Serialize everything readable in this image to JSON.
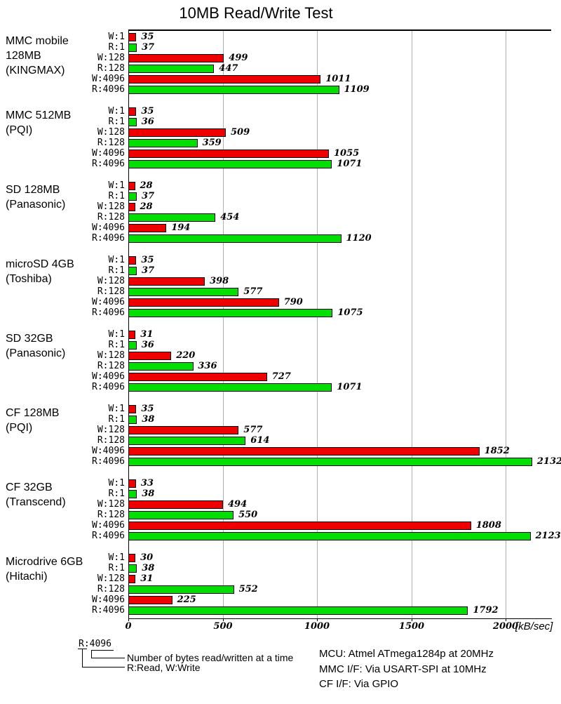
{
  "title": "10MB Read/Write Test",
  "colors": {
    "write": "#EE0000",
    "read": "#00DF00",
    "grid": "#B0B0B0",
    "axis": "#000000"
  },
  "chart_data": {
    "type": "bar",
    "orientation": "horizontal",
    "title": "10MB Read/Write Test",
    "xlabel": "[kB/sec]",
    "xticks": [
      0,
      500,
      1000,
      1500,
      2000
    ],
    "xmax": 2240,
    "grid": true,
    "bar_labels": [
      "W:1",
      "R:1",
      "W:128",
      "R:128",
      "W:4096",
      "R:4096"
    ],
    "series_legend": {
      "W": "Write (red)",
      "R": "Read (green)"
    },
    "groups": [
      {
        "name_lines": [
          "MMC mobile",
          "128MB",
          "(KINGMAX)"
        ],
        "values": [
          35,
          37,
          499,
          447,
          1011,
          1109
        ]
      },
      {
        "name_lines": [
          "MMC 512MB",
          "(PQI)"
        ],
        "values": [
          35,
          36,
          509,
          359,
          1055,
          1071
        ]
      },
      {
        "name_lines": [
          "SD 128MB",
          "(Panasonic)"
        ],
        "values": [
          28,
          37,
          28,
          454,
          194,
          1120
        ]
      },
      {
        "name_lines": [
          "microSD 4GB",
          "(Toshiba)"
        ],
        "values": [
          35,
          37,
          398,
          577,
          790,
          1075
        ]
      },
      {
        "name_lines": [
          "SD 32GB",
          "(Panasonic)"
        ],
        "values": [
          31,
          36,
          220,
          336,
          727,
          1071
        ]
      },
      {
        "name_lines": [
          "CF 128MB",
          "(PQI)"
        ],
        "values": [
          35,
          38,
          577,
          614,
          1852,
          2132
        ]
      },
      {
        "name_lines": [
          "CF 32GB",
          "(Transcend)"
        ],
        "values": [
          33,
          38,
          494,
          550,
          1808,
          2123
        ]
      },
      {
        "name_lines": [
          "Microdrive 6GB",
          "(Hitachi)"
        ],
        "values": [
          30,
          38,
          31,
          552,
          225,
          1792
        ]
      }
    ]
  },
  "legend": {
    "example_label": "R:4096",
    "note1": "Number of bytes read/written at a time",
    "note2": "R:Read, W:Write"
  },
  "footnotes": [
    "MCU: Atmel ATmega1284p at 20MHz",
    "MMC I/F: Via USART-SPI at 10MHz",
    "CF I/F: Via GPIO"
  ]
}
